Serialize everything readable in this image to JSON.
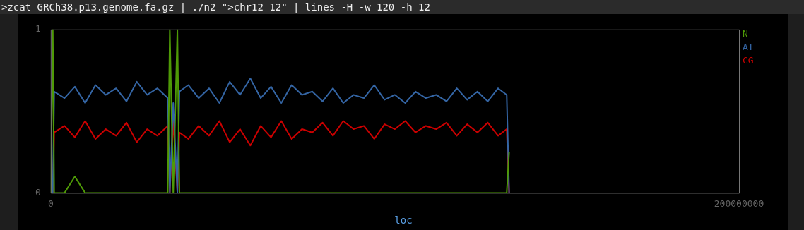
{
  "chart_data": {
    "type": "line",
    "title": ">zcat GRCh38.p13.genome.fa.gz | ./n2 \">chr12 12\" | lines -H -w 120 -h 12",
    "xlabel": "loc",
    "x": [
      0,
      600000,
      1000000,
      4000000,
      7000000,
      10000000,
      13000000,
      16000000,
      19000000,
      22000000,
      25000000,
      28000000,
      31000000,
      34000000,
      34600000,
      35600000,
      36800000,
      37400000,
      40000000,
      43000000,
      46000000,
      49000000,
      52000000,
      55000000,
      58000000,
      61000000,
      64000000,
      67000000,
      70000000,
      73000000,
      76000000,
      79000000,
      82000000,
      85000000,
      88000000,
      91000000,
      94000000,
      97000000,
      100000000,
      103000000,
      106000000,
      109000000,
      112000000,
      115000000,
      118000000,
      121000000,
      124000000,
      127000000,
      130000000,
      132500000,
      133200000
    ],
    "series": [
      {
        "name": "N",
        "color": "#4e9a06",
        "values": [
          0,
          1,
          0,
          0,
          0.1,
          0,
          0,
          0,
          0,
          0,
          0,
          0,
          0,
          0,
          1,
          0,
          1,
          0,
          0,
          0,
          0,
          0,
          0,
          0,
          0,
          0,
          0,
          0,
          0,
          0,
          0,
          0,
          0,
          0,
          0,
          0,
          0,
          0,
          0,
          0,
          0,
          0,
          0,
          0,
          0,
          0,
          0,
          0,
          0,
          0,
          0.25
        ]
      },
      {
        "name": "AT",
        "color": "#3465a4",
        "values": [
          0,
          0,
          0.62,
          0.58,
          0.65,
          0.55,
          0.66,
          0.6,
          0.64,
          0.56,
          0.68,
          0.6,
          0.64,
          0.58,
          0,
          0.55,
          0,
          0.62,
          0.66,
          0.58,
          0.64,
          0.55,
          0.68,
          0.6,
          0.7,
          0.58,
          0.65,
          0.55,
          0.66,
          0.6,
          0.62,
          0.56,
          0.64,
          0.55,
          0.6,
          0.58,
          0.66,
          0.57,
          0.6,
          0.55,
          0.62,
          0.58,
          0.6,
          0.56,
          0.64,
          0.57,
          0.62,
          0.56,
          0.64,
          0.6,
          0
        ]
      },
      {
        "name": "CG",
        "color": "#cc0000",
        "values": [
          0,
          0,
          0.37,
          0.41,
          0.34,
          0.44,
          0.33,
          0.39,
          0.35,
          0.43,
          0.31,
          0.39,
          0.35,
          0.41,
          0,
          0.44,
          0,
          0.37,
          0.33,
          0.41,
          0.35,
          0.44,
          0.31,
          0.39,
          0.29,
          0.41,
          0.34,
          0.44,
          0.33,
          0.39,
          0.37,
          0.43,
          0.35,
          0.44,
          0.39,
          0.41,
          0.33,
          0.42,
          0.39,
          0.44,
          0.37,
          0.41,
          0.39,
          0.43,
          0.35,
          0.42,
          0.37,
          0.43,
          0.35,
          0.39,
          0
        ]
      }
    ],
    "xlim": [
      0,
      200000000
    ],
    "xticks": [
      0,
      200000000
    ],
    "ylim": [
      0,
      1
    ],
    "yticks": [
      0,
      1
    ],
    "grid": false,
    "legend": "top right",
    "marker": "none",
    "line_style": "solid"
  }
}
